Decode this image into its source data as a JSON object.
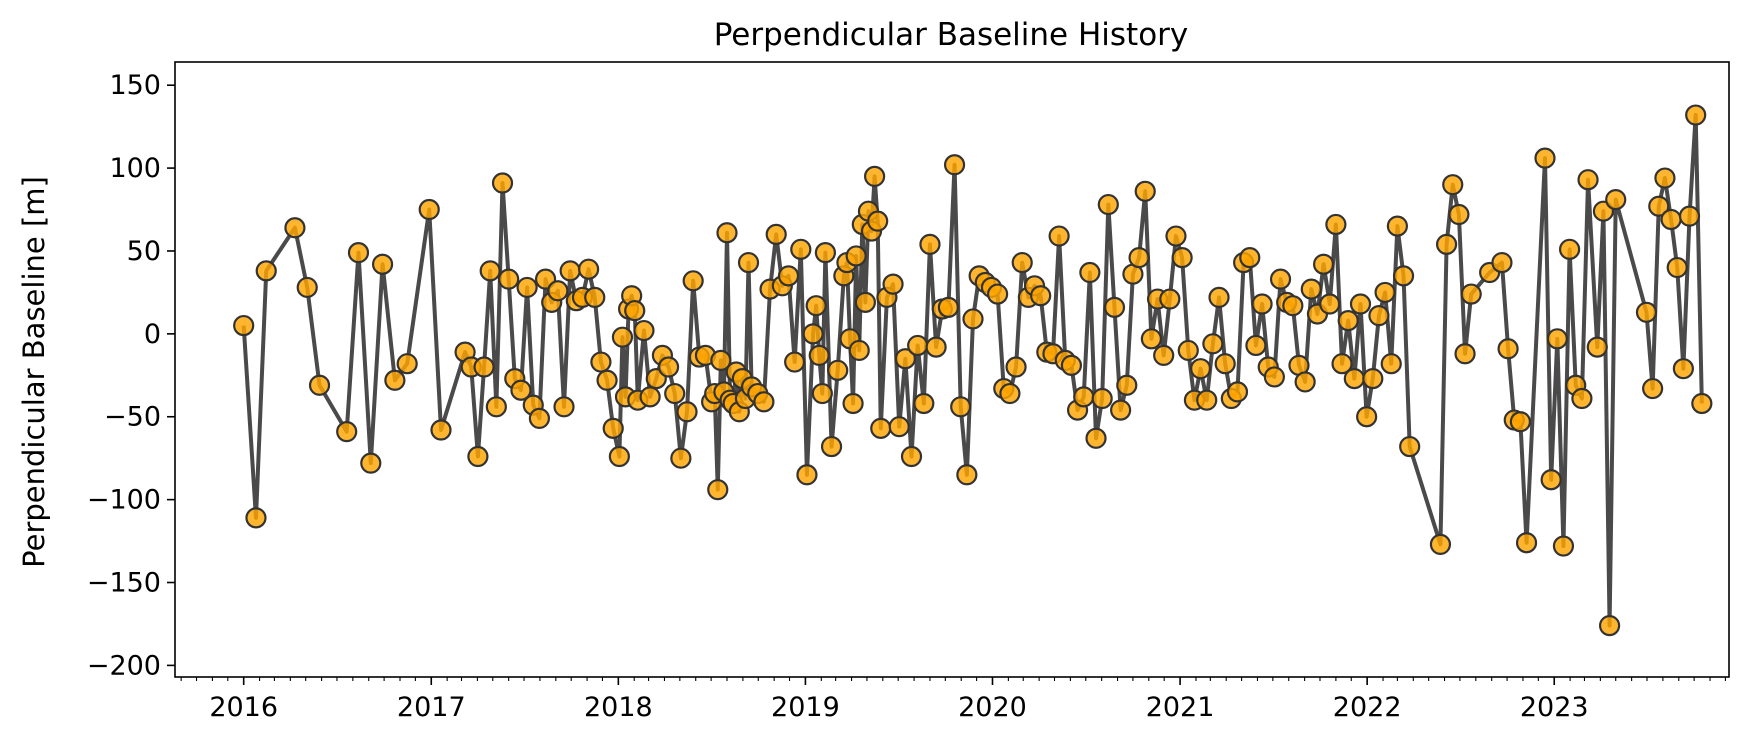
{
  "chart_data": {
    "type": "line",
    "title": "Perpendicular Baseline History",
    "xlabel": "",
    "ylabel": "Perpendicular Baseline [m]",
    "xlim": [
      "2015-08-20",
      "2023-12-08"
    ],
    "ylim": [
      -207,
      164
    ],
    "x_ticks": [
      "2016",
      "2017",
      "2018",
      "2019",
      "2020",
      "2021",
      "2022",
      "2023"
    ],
    "y_ticks": [
      150,
      100,
      50,
      0,
      -50,
      -100,
      -150,
      -200
    ],
    "y_tick_labels": [
      "150",
      "100",
      "50",
      "0",
      "−50",
      "−100",
      "−150",
      "−200"
    ],
    "grid": false,
    "legend": "none",
    "colors": {
      "line": "#404040",
      "marker_fill": "#FFA500",
      "marker_edge": "#333333"
    },
    "series": [
      {
        "points": [
          [
            "2016-01-01",
            5
          ],
          [
            "2016-01-25",
            -111
          ],
          [
            "2016-02-14",
            38
          ],
          [
            "2016-04-10",
            64
          ],
          [
            "2016-05-04",
            28
          ],
          [
            "2016-05-28",
            -31
          ],
          [
            "2016-07-20",
            -59
          ],
          [
            "2016-08-12",
            49
          ],
          [
            "2016-09-05",
            -78
          ],
          [
            "2016-09-28",
            42
          ],
          [
            "2016-10-22",
            -28
          ],
          [
            "2016-11-15",
            -18
          ],
          [
            "2016-12-28",
            75
          ],
          [
            "2017-01-20",
            -58
          ],
          [
            "2017-03-08",
            -11
          ],
          [
            "2017-03-20",
            -20
          ],
          [
            "2017-04-02",
            -74
          ],
          [
            "2017-04-14",
            -20
          ],
          [
            "2017-04-26",
            38
          ],
          [
            "2017-05-08",
            -44
          ],
          [
            "2017-05-20",
            91
          ],
          [
            "2017-06-01",
            33
          ],
          [
            "2017-06-13",
            -27
          ],
          [
            "2017-06-25",
            -34
          ],
          [
            "2017-07-07",
            28
          ],
          [
            "2017-07-19",
            -43
          ],
          [
            "2017-07-31",
            -51
          ],
          [
            "2017-08-12",
            33
          ],
          [
            "2017-08-24",
            19
          ],
          [
            "2017-09-05",
            26
          ],
          [
            "2017-09-17",
            -44
          ],
          [
            "2017-09-29",
            38
          ],
          [
            "2017-10-11",
            20
          ],
          [
            "2017-10-23",
            22
          ],
          [
            "2017-11-04",
            39
          ],
          [
            "2017-11-16",
            22
          ],
          [
            "2017-11-28",
            -17
          ],
          [
            "2017-12-10",
            -28
          ],
          [
            "2017-12-22",
            -57
          ],
          [
            "2018-01-03",
            -74
          ],
          [
            "2018-01-09",
            -2
          ],
          [
            "2018-01-15",
            -38
          ],
          [
            "2018-01-21",
            15
          ],
          [
            "2018-01-27",
            23
          ],
          [
            "2018-02-02",
            14
          ],
          [
            "2018-02-08",
            -40
          ],
          [
            "2018-02-20",
            2
          ],
          [
            "2018-03-04",
            -38
          ],
          [
            "2018-03-16",
            -27
          ],
          [
            "2018-03-28",
            -13
          ],
          [
            "2018-04-09",
            -20
          ],
          [
            "2018-04-21",
            -36
          ],
          [
            "2018-05-03",
            -75
          ],
          [
            "2018-05-15",
            -47
          ],
          [
            "2018-05-27",
            32
          ],
          [
            "2018-06-08",
            -14
          ],
          [
            "2018-06-20",
            -13
          ],
          [
            "2018-07-02",
            -41
          ],
          [
            "2018-07-08",
            -36
          ],
          [
            "2018-07-14",
            -94
          ],
          [
            "2018-07-20",
            -16
          ],
          [
            "2018-07-26",
            -35
          ],
          [
            "2018-08-01",
            61
          ],
          [
            "2018-08-07",
            -40
          ],
          [
            "2018-08-13",
            -42
          ],
          [
            "2018-08-19",
            -23
          ],
          [
            "2018-08-25",
            -47
          ],
          [
            "2018-08-31",
            -27
          ],
          [
            "2018-09-06",
            -39
          ],
          [
            "2018-09-12",
            43
          ],
          [
            "2018-09-18",
            -32
          ],
          [
            "2018-09-30",
            -36
          ],
          [
            "2018-10-12",
            -41
          ],
          [
            "2018-10-24",
            27
          ],
          [
            "2018-11-05",
            60
          ],
          [
            "2018-11-17",
            29
          ],
          [
            "2018-11-29",
            35
          ],
          [
            "2018-12-11",
            -17
          ],
          [
            "2018-12-23",
            51
          ],
          [
            "2019-01-04",
            -85
          ],
          [
            "2019-01-16",
            0
          ],
          [
            "2019-01-22",
            17
          ],
          [
            "2019-01-28",
            -13
          ],
          [
            "2019-02-03",
            -36
          ],
          [
            "2019-02-09",
            49
          ],
          [
            "2019-02-21",
            -68
          ],
          [
            "2019-03-05",
            -22
          ],
          [
            "2019-03-17",
            35
          ],
          [
            "2019-03-23",
            43
          ],
          [
            "2019-03-29",
            -3
          ],
          [
            "2019-04-04",
            -42
          ],
          [
            "2019-04-10",
            47
          ],
          [
            "2019-04-16",
            -10
          ],
          [
            "2019-04-22",
            66
          ],
          [
            "2019-04-28",
            19
          ],
          [
            "2019-05-04",
            74
          ],
          [
            "2019-05-10",
            62
          ],
          [
            "2019-05-16",
            95
          ],
          [
            "2019-05-22",
            68
          ],
          [
            "2019-05-28",
            -57
          ],
          [
            "2019-06-09",
            22
          ],
          [
            "2019-06-21",
            30
          ],
          [
            "2019-07-03",
            -56
          ],
          [
            "2019-07-15",
            -15
          ],
          [
            "2019-07-27",
            -74
          ],
          [
            "2019-08-08",
            -7
          ],
          [
            "2019-08-20",
            -42
          ],
          [
            "2019-09-01",
            54
          ],
          [
            "2019-09-13",
            -8
          ],
          [
            "2019-09-25",
            15
          ],
          [
            "2019-10-07",
            16
          ],
          [
            "2019-10-19",
            102
          ],
          [
            "2019-10-31",
            -44
          ],
          [
            "2019-11-12",
            -85
          ],
          [
            "2019-11-24",
            9
          ],
          [
            "2019-12-06",
            35
          ],
          [
            "2019-12-18",
            31
          ],
          [
            "2019-12-30",
            28
          ],
          [
            "2020-01-11",
            24
          ],
          [
            "2020-01-23",
            -33
          ],
          [
            "2020-02-04",
            -36
          ],
          [
            "2020-02-16",
            -20
          ],
          [
            "2020-02-28",
            43
          ],
          [
            "2020-03-11",
            22
          ],
          [
            "2020-03-23",
            29
          ],
          [
            "2020-04-04",
            23
          ],
          [
            "2020-04-16",
            -11
          ],
          [
            "2020-04-28",
            -12
          ],
          [
            "2020-05-10",
            59
          ],
          [
            "2020-05-22",
            -16
          ],
          [
            "2020-06-03",
            -19
          ],
          [
            "2020-06-15",
            -46
          ],
          [
            "2020-06-27",
            -38
          ],
          [
            "2020-07-09",
            37
          ],
          [
            "2020-07-21",
            -63
          ],
          [
            "2020-08-02",
            -39
          ],
          [
            "2020-08-14",
            78
          ],
          [
            "2020-08-26",
            16
          ],
          [
            "2020-09-07",
            -46
          ],
          [
            "2020-09-19",
            -31
          ],
          [
            "2020-10-01",
            36
          ],
          [
            "2020-10-13",
            46
          ],
          [
            "2020-10-25",
            86
          ],
          [
            "2020-11-06",
            -3
          ],
          [
            "2020-11-18",
            21
          ],
          [
            "2020-11-30",
            -13
          ],
          [
            "2020-12-12",
            21
          ],
          [
            "2020-12-24",
            59
          ],
          [
            "2021-01-05",
            46
          ],
          [
            "2021-01-17",
            -10
          ],
          [
            "2021-01-29",
            -40
          ],
          [
            "2021-02-10",
            -21
          ],
          [
            "2021-02-22",
            -40
          ],
          [
            "2021-03-06",
            -6
          ],
          [
            "2021-03-18",
            22
          ],
          [
            "2021-03-30",
            -18
          ],
          [
            "2021-04-11",
            -39
          ],
          [
            "2021-04-23",
            -35
          ],
          [
            "2021-05-05",
            43
          ],
          [
            "2021-05-17",
            46
          ],
          [
            "2021-05-29",
            -7
          ],
          [
            "2021-06-10",
            18
          ],
          [
            "2021-06-22",
            -20
          ],
          [
            "2021-07-04",
            -26
          ],
          [
            "2021-07-16",
            33
          ],
          [
            "2021-07-28",
            19
          ],
          [
            "2021-08-09",
            17
          ],
          [
            "2021-08-21",
            -19
          ],
          [
            "2021-09-02",
            -29
          ],
          [
            "2021-09-14",
            27
          ],
          [
            "2021-09-26",
            12
          ],
          [
            "2021-10-08",
            42
          ],
          [
            "2021-10-20",
            18
          ],
          [
            "2021-11-01",
            66
          ],
          [
            "2021-11-13",
            -18
          ],
          [
            "2021-11-25",
            8
          ],
          [
            "2021-12-07",
            -27
          ],
          [
            "2021-12-19",
            18
          ],
          [
            "2021-12-31",
            -50
          ],
          [
            "2022-01-12",
            -27
          ],
          [
            "2022-01-24",
            11
          ],
          [
            "2022-02-05",
            25
          ],
          [
            "2022-02-17",
            -18
          ],
          [
            "2022-03-01",
            65
          ],
          [
            "2022-03-13",
            35
          ],
          [
            "2022-03-25",
            -68
          ],
          [
            "2022-05-24",
            -127
          ],
          [
            "2022-06-05",
            54
          ],
          [
            "2022-06-17",
            90
          ],
          [
            "2022-06-29",
            72
          ],
          [
            "2022-07-11",
            -12
          ],
          [
            "2022-07-23",
            24
          ],
          [
            "2022-08-28",
            37
          ],
          [
            "2022-09-21",
            43
          ],
          [
            "2022-10-03",
            -9
          ],
          [
            "2022-10-15",
            -52
          ],
          [
            "2022-10-27",
            -53
          ],
          [
            "2022-11-08",
            -126
          ],
          [
            "2022-12-14",
            106
          ],
          [
            "2022-12-26",
            -88
          ],
          [
            "2023-01-07",
            -3
          ],
          [
            "2023-01-19",
            -128
          ],
          [
            "2023-01-31",
            51
          ],
          [
            "2023-02-12",
            -31
          ],
          [
            "2023-02-24",
            -39
          ],
          [
            "2023-03-08",
            93
          ],
          [
            "2023-03-26",
            -8
          ],
          [
            "2023-04-07",
            74
          ],
          [
            "2023-04-19",
            -176
          ],
          [
            "2023-05-01",
            81
          ],
          [
            "2023-06-30",
            13
          ],
          [
            "2023-07-12",
            -33
          ],
          [
            "2023-07-24",
            77
          ],
          [
            "2023-08-05",
            94
          ],
          [
            "2023-08-17",
            69
          ],
          [
            "2023-08-29",
            40
          ],
          [
            "2023-09-10",
            -21
          ],
          [
            "2023-09-22",
            71
          ],
          [
            "2023-10-04",
            132
          ],
          [
            "2023-10-16",
            -42
          ]
        ]
      }
    ]
  }
}
